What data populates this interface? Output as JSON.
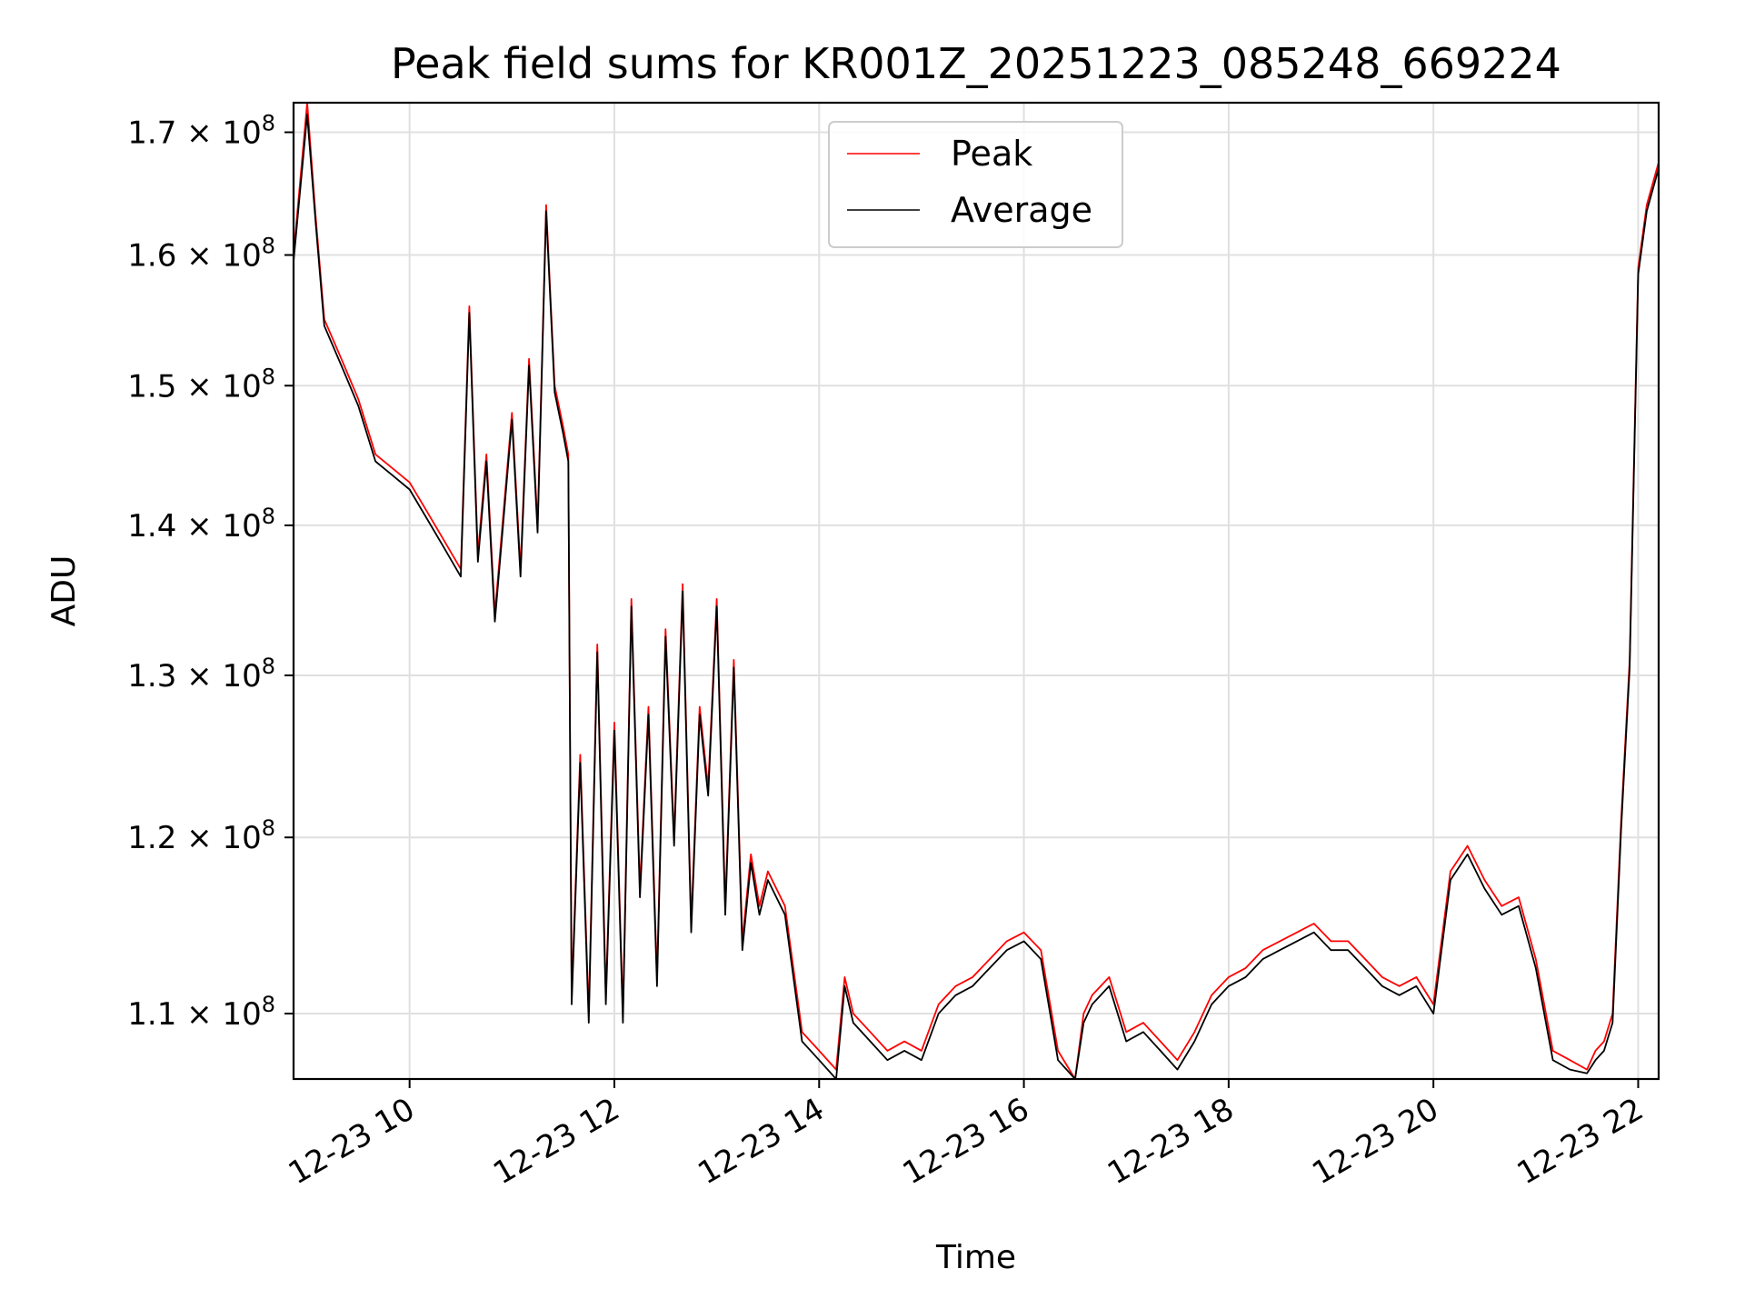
{
  "chart_data": {
    "type": "line",
    "title": "Peak field sums for KR001Z_20251223_085248_669224",
    "xlabel": "Time",
    "ylabel": "ADU",
    "yscale": "log",
    "x_ticks": [
      "12-23 10",
      "12-23 12",
      "12-23 14",
      "12-23 16",
      "12-23 18",
      "12-23 20",
      "12-23 22"
    ],
    "y_ticks": [
      {
        "mant": "1.1",
        "exp": "8",
        "value": 110000000
      },
      {
        "mant": "1.2",
        "exp": "8",
        "value": 120000000
      },
      {
        "mant": "1.3",
        "exp": "8",
        "value": 130000000
      },
      {
        "mant": "1.4",
        "exp": "8",
        "value": 140000000
      },
      {
        "mant": "1.5",
        "exp": "8",
        "value": 150000000
      },
      {
        "mant": "1.6",
        "exp": "8",
        "value": 160000000
      },
      {
        "mant": "1.7",
        "exp": "8",
        "value": 170000000
      }
    ],
    "xlim": [
      "2025-12-23 08:52",
      "2025-12-23 22:12"
    ],
    "ylim": [
      106500000,
      172500000
    ],
    "grid": true,
    "legend_position": "upper center",
    "series": [
      {
        "name": "Peak",
        "color": "#ff0000",
        "x": [
          "08:52",
          "09:00",
          "09:05",
          "09:10",
          "09:20",
          "09:30",
          "09:40",
          "09:50",
          "10:00",
          "10:10",
          "10:20",
          "10:30",
          "10:35",
          "10:40",
          "10:45",
          "10:50",
          "11:00",
          "11:05",
          "11:10",
          "11:15",
          "11:20",
          "11:25",
          "11:30",
          "11:33",
          "11:35",
          "11:40",
          "11:45",
          "11:50",
          "11:55",
          "12:00",
          "12:05",
          "12:10",
          "12:15",
          "12:20",
          "12:25",
          "12:30",
          "12:35",
          "12:40",
          "12:45",
          "12:50",
          "12:55",
          "13:00",
          "13:05",
          "13:10",
          "13:15",
          "13:20",
          "13:25",
          "13:30",
          "13:40",
          "13:50",
          "14:00",
          "14:10",
          "14:15",
          "14:20",
          "14:30",
          "14:40",
          "14:50",
          "15:00",
          "15:10",
          "15:20",
          "15:30",
          "15:40",
          "15:50",
          "16:00",
          "16:10",
          "16:20",
          "16:30",
          "16:35",
          "16:40",
          "16:50",
          "17:00",
          "17:10",
          "17:20",
          "17:30",
          "17:40",
          "17:50",
          "18:00",
          "18:10",
          "18:20",
          "18:30",
          "18:40",
          "18:50",
          "19:00",
          "19:10",
          "19:20",
          "19:30",
          "19:40",
          "19:50",
          "20:00",
          "20:10",
          "20:20",
          "20:30",
          "20:40",
          "20:50",
          "21:00",
          "21:10",
          "21:20",
          "21:30",
          "21:35",
          "21:40",
          "21:45",
          "21:50",
          "21:55",
          "22:00",
          "22:05",
          "22:12"
        ],
        "y": [
          160000000,
          172500000,
          163000000,
          155000000,
          152000000,
          149000000,
          145000000,
          144000000,
          143000000,
          141000000,
          139000000,
          137000000,
          156000000,
          138000000,
          145000000,
          134000000,
          148000000,
          137000000,
          152000000,
          140000000,
          164000000,
          150000000,
          147000000,
          145000000,
          111000000,
          125000000,
          110000000,
          132000000,
          111000000,
          127000000,
          110000000,
          135000000,
          117000000,
          128000000,
          112000000,
          133000000,
          120000000,
          136000000,
          115000000,
          128000000,
          123000000,
          135000000,
          116000000,
          131000000,
          114000000,
          119000000,
          116000000,
          118000000,
          116000000,
          109000000,
          108000000,
          107000000,
          112000000,
          110000000,
          109000000,
          108000000,
          108500000,
          108000000,
          110500000,
          111500000,
          112000000,
          113000000,
          114000000,
          114500000,
          113500000,
          108000000,
          106500000,
          110000000,
          111000000,
          112000000,
          109000000,
          109500000,
          108500000,
          107500000,
          109000000,
          111000000,
          112000000,
          112500000,
          113500000,
          114000000,
          114500000,
          115000000,
          114000000,
          114000000,
          113000000,
          112000000,
          111500000,
          112000000,
          110500000,
          118000000,
          119500000,
          117500000,
          116000000,
          116500000,
          113000000,
          108000000,
          107500000,
          107000000,
          108000000,
          108500000,
          110000000,
          121000000,
          131000000,
          159000000,
          164000000,
          167500000
        ]
      },
      {
        "name": "Average",
        "color": "#000000",
        "x": [
          "08:52",
          "09:00",
          "09:05",
          "09:10",
          "09:20",
          "09:30",
          "09:40",
          "09:50",
          "10:00",
          "10:10",
          "10:20",
          "10:30",
          "10:35",
          "10:40",
          "10:45",
          "10:50",
          "11:00",
          "11:05",
          "11:10",
          "11:15",
          "11:20",
          "11:25",
          "11:30",
          "11:33",
          "11:35",
          "11:40",
          "11:45",
          "11:50",
          "11:55",
          "12:00",
          "12:05",
          "12:10",
          "12:15",
          "12:20",
          "12:25",
          "12:30",
          "12:35",
          "12:40",
          "12:45",
          "12:50",
          "12:55",
          "13:00",
          "13:05",
          "13:10",
          "13:15",
          "13:20",
          "13:25",
          "13:30",
          "13:40",
          "13:50",
          "14:00",
          "14:10",
          "14:15",
          "14:20",
          "14:30",
          "14:40",
          "14:50",
          "15:00",
          "15:10",
          "15:20",
          "15:30",
          "15:40",
          "15:50",
          "16:00",
          "16:10",
          "16:20",
          "16:30",
          "16:35",
          "16:40",
          "16:50",
          "17:00",
          "17:10",
          "17:20",
          "17:30",
          "17:40",
          "17:50",
          "18:00",
          "18:10",
          "18:20",
          "18:30",
          "18:40",
          "18:50",
          "19:00",
          "19:10",
          "19:20",
          "19:30",
          "19:40",
          "19:50",
          "20:00",
          "20:10",
          "20:20",
          "20:30",
          "20:40",
          "20:50",
          "21:00",
          "21:10",
          "21:20",
          "21:30",
          "21:35",
          "21:40",
          "21:45",
          "21:50",
          "21:55",
          "22:00",
          "22:05",
          "22:12"
        ],
        "y": [
          159500000,
          171500000,
          162500000,
          154500000,
          151500000,
          148500000,
          144500000,
          143500000,
          142500000,
          140500000,
          138500000,
          136500000,
          155500000,
          137500000,
          144500000,
          133500000,
          147500000,
          136500000,
          151500000,
          139500000,
          163500000,
          149500000,
          146500000,
          144500000,
          110500000,
          124500000,
          109500000,
          131500000,
          110500000,
          126500000,
          109500000,
          134500000,
          116500000,
          127500000,
          111500000,
          132500000,
          119500000,
          135500000,
          114500000,
          127500000,
          122500000,
          134500000,
          115500000,
          130500000,
          113500000,
          118500000,
          115500000,
          117500000,
          115500000,
          108500000,
          107500000,
          106500000,
          111500000,
          109500000,
          108500000,
          107500000,
          108000000,
          107500000,
          110000000,
          111000000,
          111500000,
          112500000,
          113500000,
          114000000,
          113000000,
          107500000,
          106500000,
          109500000,
          110500000,
          111500000,
          108500000,
          109000000,
          108000000,
          107000000,
          108500000,
          110500000,
          111500000,
          112000000,
          113000000,
          113500000,
          114000000,
          114500000,
          113500000,
          113500000,
          112500000,
          111500000,
          111000000,
          111500000,
          110000000,
          117500000,
          119000000,
          117000000,
          115500000,
          116000000,
          112500000,
          107500000,
          107000000,
          106800000,
          107500000,
          108000000,
          109500000,
          120500000,
          130500000,
          158500000,
          163500000,
          167000000
        ]
      }
    ]
  }
}
